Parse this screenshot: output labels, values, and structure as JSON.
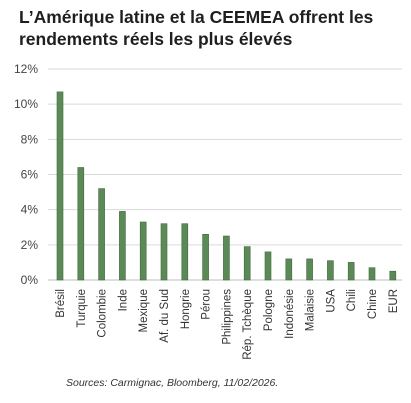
{
  "title": "L’Amérique latine et la CEEMEA offrent les rendements réels les plus élevés",
  "source": "Sources: Carmignac, Bloomberg, 11/02/2026.",
  "chart_data": {
    "type": "bar",
    "title": "L’Amérique latine et la CEEMEA offrent les rendements réels les plus élevés",
    "xlabel": "",
    "ylabel": "",
    "categories": [
      "Brésil",
      "Turquie",
      "Colombie",
      "Inde",
      "Mexique",
      "Af. du Sud",
      "Hongrie",
      "Pérou",
      "Philippines",
      "Rép. Tchèque",
      "Pologne",
      "Indonésie",
      "Malaisie",
      "USA",
      "Chili",
      "Chine",
      "EUR"
    ],
    "values": [
      10.7,
      6.4,
      5.2,
      3.9,
      3.3,
      3.2,
      3.2,
      2.6,
      2.5,
      1.9,
      1.6,
      1.2,
      1.2,
      1.1,
      1.0,
      0.7,
      0.5
    ],
    "ylim": [
      0,
      12
    ],
    "yticks": [
      0,
      2,
      4,
      6,
      8,
      10,
      12
    ],
    "ytick_labels": [
      "0%",
      "2%",
      "4%",
      "6%",
      "8%",
      "10%",
      "12%"
    ],
    "grid": true,
    "legend": "none",
    "bar_color": "#5b8a56",
    "bar_edge_color": "#3f6a3b",
    "grid_color": "#d9d9d9"
  }
}
